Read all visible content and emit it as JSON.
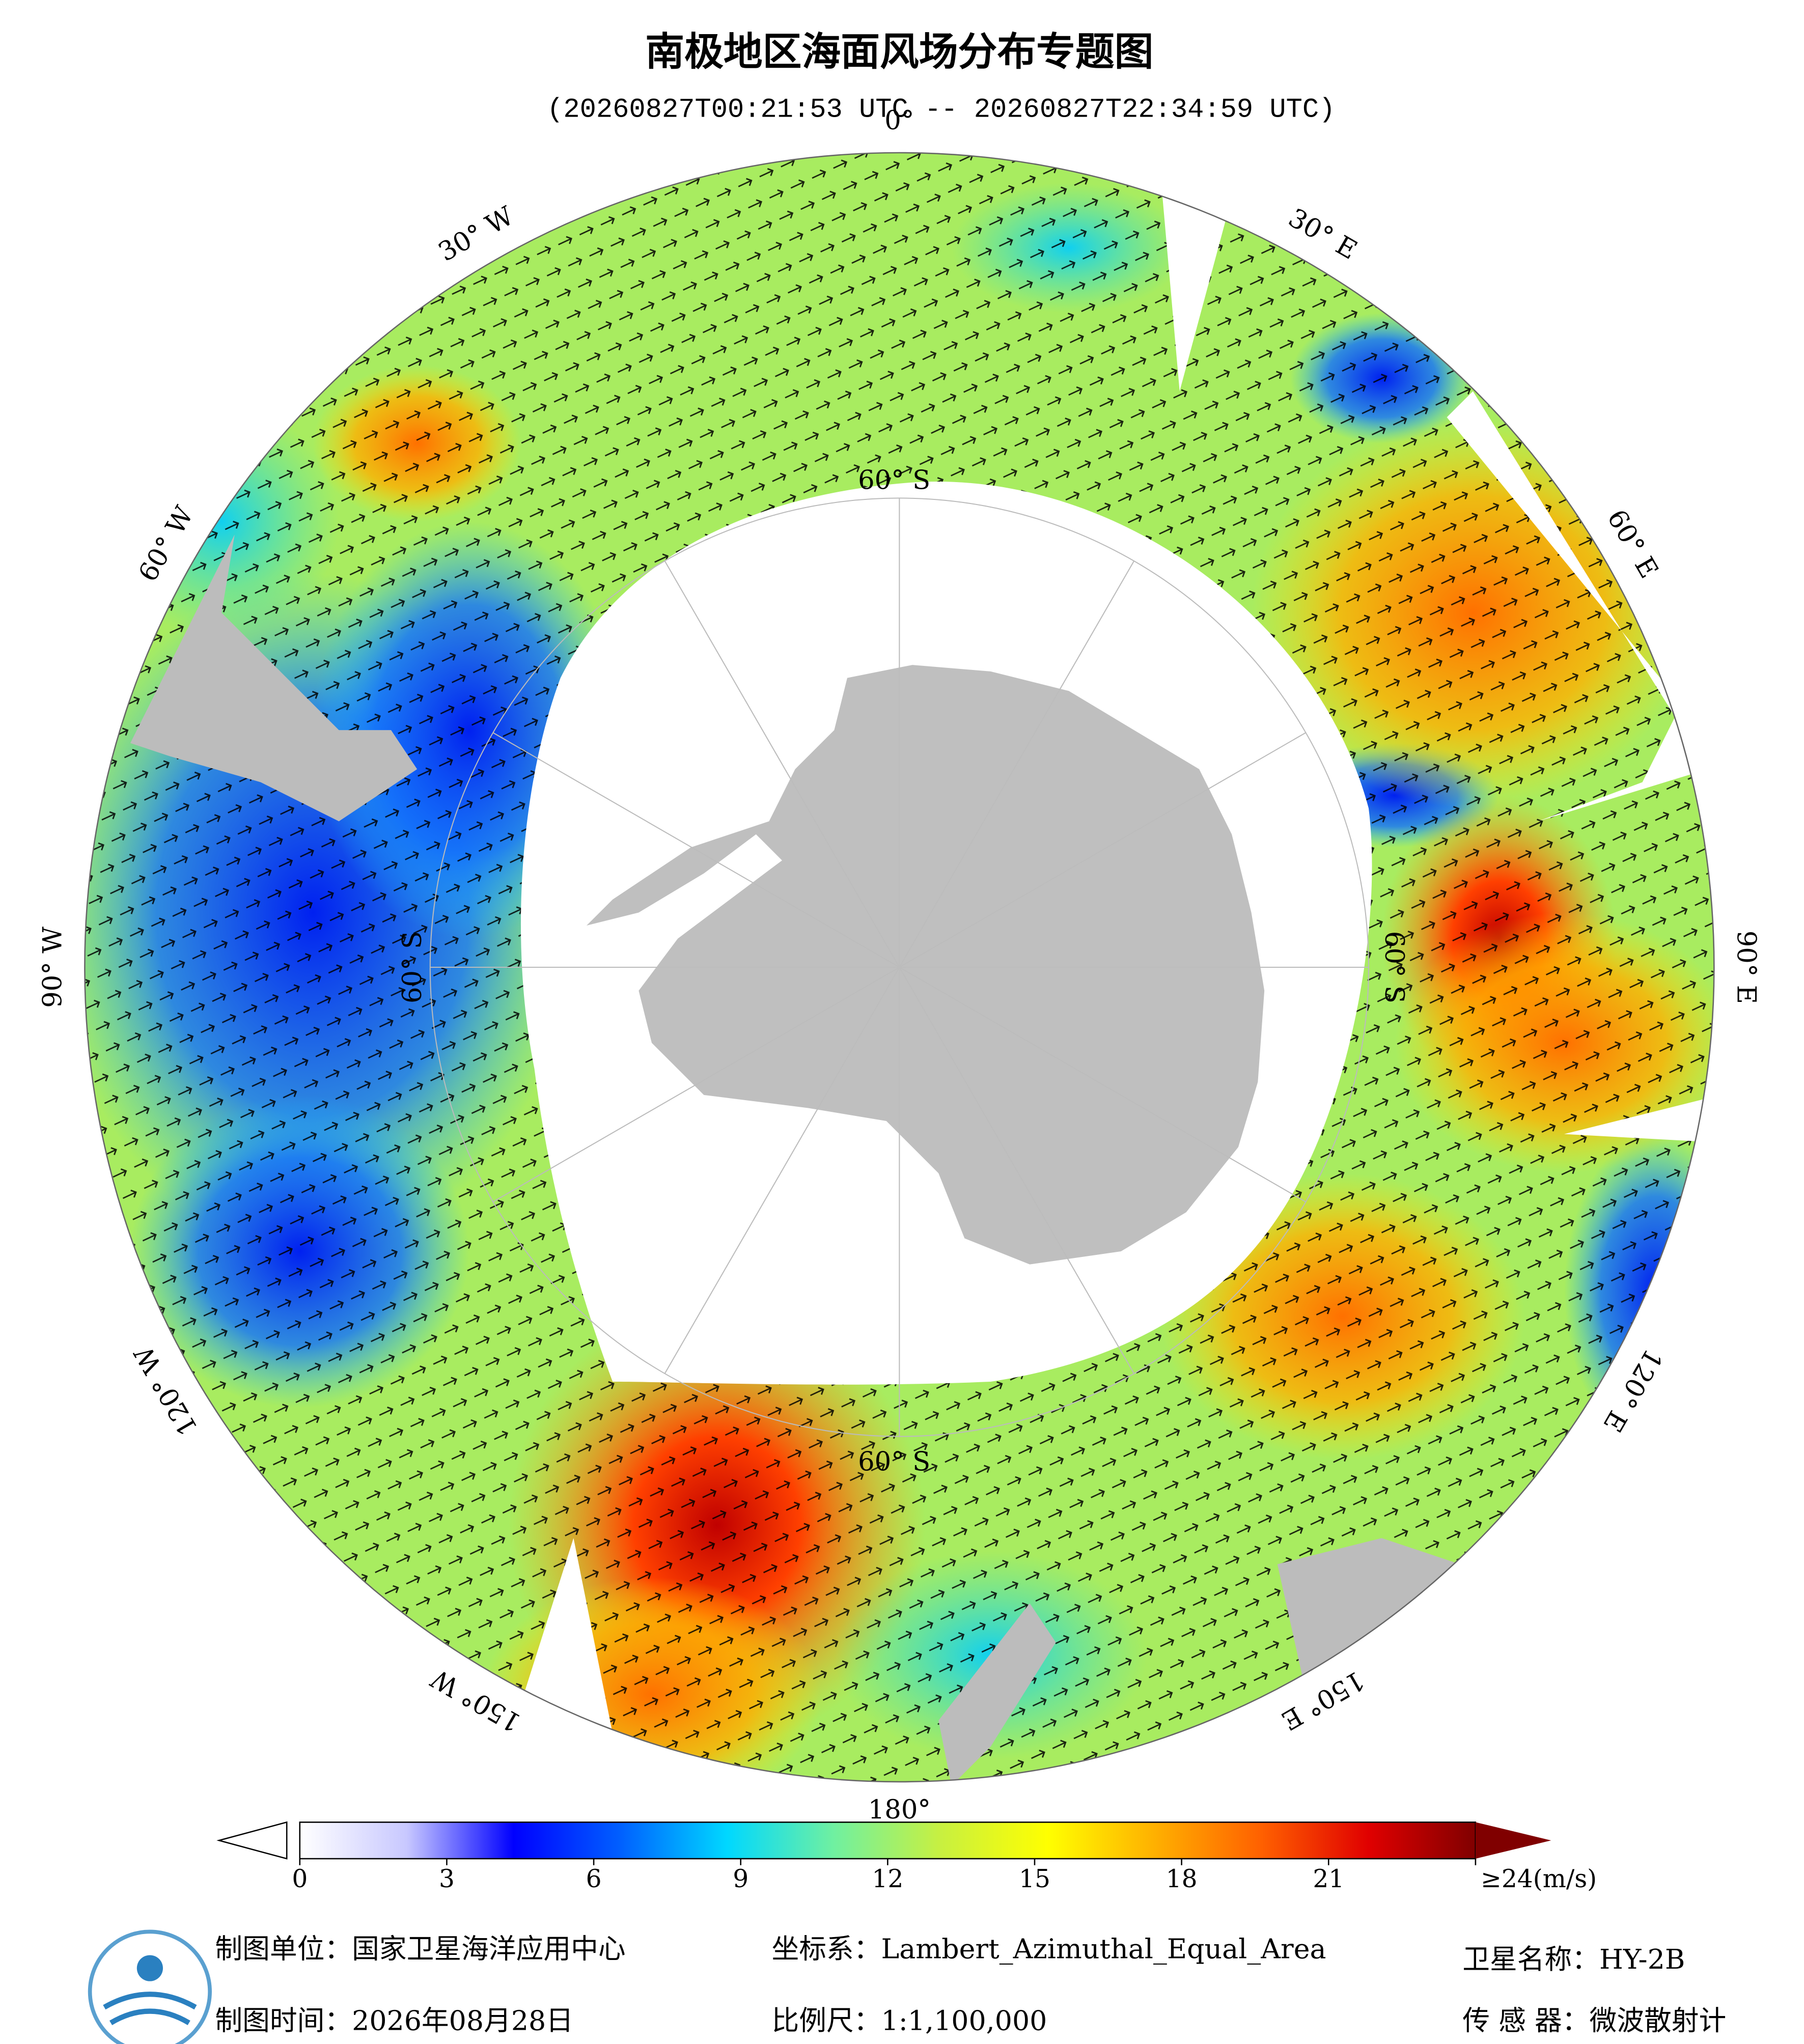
{
  "title": "南极地区海面风场分布专题图",
  "subtitle": "(20260827T00:21:53 UTC -- 20260827T22:34:59 UTC)",
  "lon_labels": [
    "0°",
    "30° E",
    "60° E",
    "90° E",
    "120° E",
    "150° E",
    "180°",
    "150° W",
    "120° W",
    "90° W",
    "60° W",
    "30° W"
  ],
  "lat_labels": [
    "60° S",
    "60° S",
    "60° S",
    "60° S"
  ],
  "colorbar": {
    "lim": [
      0,
      24
    ],
    "ticks": [
      0,
      3,
      6,
      9,
      12,
      15,
      18,
      21,
      {
        "value": 24,
        "label": "≥24(m/s)"
      }
    ],
    "colors": [
      "#ffffff",
      "#c8c8ff",
      "#0000ff",
      "#0060ff",
      "#00d8ff",
      "#70f0a0",
      "#c8f040",
      "#ffff00",
      "#ffb000",
      "#ff6000",
      "#e00000",
      "#800000"
    ],
    "over_color": "#800000"
  },
  "footer": {
    "unit": "制图单位：国家卫星海洋应用中心",
    "time": "制图时间：2026年08月28日",
    "crs": "坐标系：Lambert_Azimuthal_Equal_Area",
    "scale": "比例尺：1:1,100,000",
    "satellite": "卫星名称：HY-2B",
    "sensor": "传 感 器：微波散射计"
  }
}
